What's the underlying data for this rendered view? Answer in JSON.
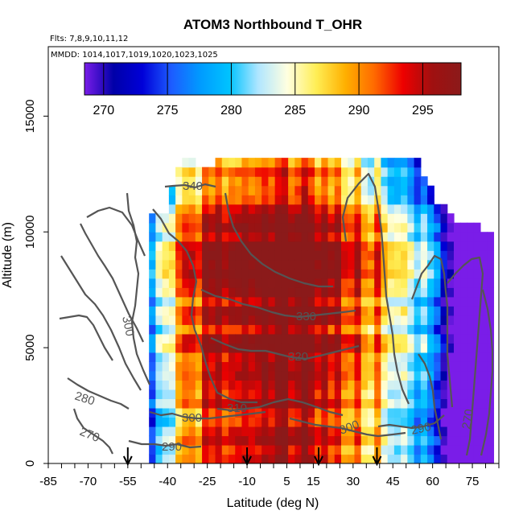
{
  "chart_data": {
    "type": "heatmap",
    "title": "ATOM3 Northbound T_OHR",
    "subtitle_flights": "Flts: 7,8,9,10,11,12",
    "subtitle_dates": "MMDD: 1014,1017,1019,1020,1023,1025",
    "xlabel": "Latitude (deg N)",
    "ylabel": "Altitude (m)",
    "xlim": [
      -85,
      85
    ],
    "ylim": [
      0,
      18000
    ],
    "x_ticks": [
      -85,
      -70,
      -55,
      -40,
      -25,
      -10,
      5,
      15,
      30,
      45,
      60,
      75
    ],
    "x_ticklabels": [
      "-85",
      "-70",
      "-55",
      "-40",
      "-25",
      "-10",
      "5",
      "15",
      "30",
      "45",
      "60",
      "75"
    ],
    "x_minor_ticks": [
      -80,
      -75,
      -65,
      -60,
      -50,
      -45,
      -35,
      -30,
      -20,
      -15,
      -5,
      0,
      10,
      20,
      25,
      35,
      40,
      50,
      55,
      65,
      70,
      80,
      85
    ],
    "y_ticks": [
      0,
      5000,
      10000,
      15000
    ],
    "y_ticklabels": [
      "0",
      "5000",
      "10000",
      "15000"
    ],
    "colorbar": {
      "min": 268.5,
      "max": 298,
      "ticks": [
        270,
        275,
        280,
        285,
        290,
        295
      ],
      "ticklabels": [
        "270",
        "275",
        "280",
        "285",
        "290",
        "295"
      ],
      "colors": [
        "#7a1de8",
        "#0000a8",
        "#0000d8",
        "#1d5cff",
        "#009bff",
        "#00c3ff",
        "#b0e6ff",
        "#ffffe0",
        "#ffee55",
        "#ffb000",
        "#ff6a00",
        "#ee0000",
        "#a01010",
        "#8b1a1a"
      ]
    },
    "cells": {
      "lat_range": [
        -47,
        81
      ],
      "lat_step": 2.5,
      "alt_step": 400,
      "coverage_top_m": [
        10500,
        10500,
        10500,
        11800,
        12500,
        12900,
        12900,
        12800,
        12800,
        12800,
        12900,
        12900,
        12900,
        12900,
        12900,
        12900,
        12900,
        12900,
        12900,
        12900,
        12900,
        12900,
        12900,
        12900,
        12900,
        12900,
        12900,
        12900,
        12900,
        12900,
        12900,
        12900,
        12900,
        12900,
        12900,
        12900,
        12900,
        12900,
        12900,
        12900,
        12900,
        12200,
        11800,
        11200,
        11000,
        10500,
        10200,
        10200,
        10200,
        10200,
        9800,
        9800
      ]
    },
    "contours": [
      {
        "level": "270",
        "label": "270"
      },
      {
        "level": "280",
        "label": "280"
      },
      {
        "level": "290",
        "label": "290"
      },
      {
        "level": "300",
        "label": "300"
      },
      {
        "level": "310",
        "label": "310"
      },
      {
        "level": "320",
        "label": "320"
      },
      {
        "level": "330",
        "label": "330"
      },
      {
        "level": "340",
        "label": "340"
      }
    ],
    "arrows_lat": [
      -55,
      -10,
      17,
      39
    ]
  }
}
